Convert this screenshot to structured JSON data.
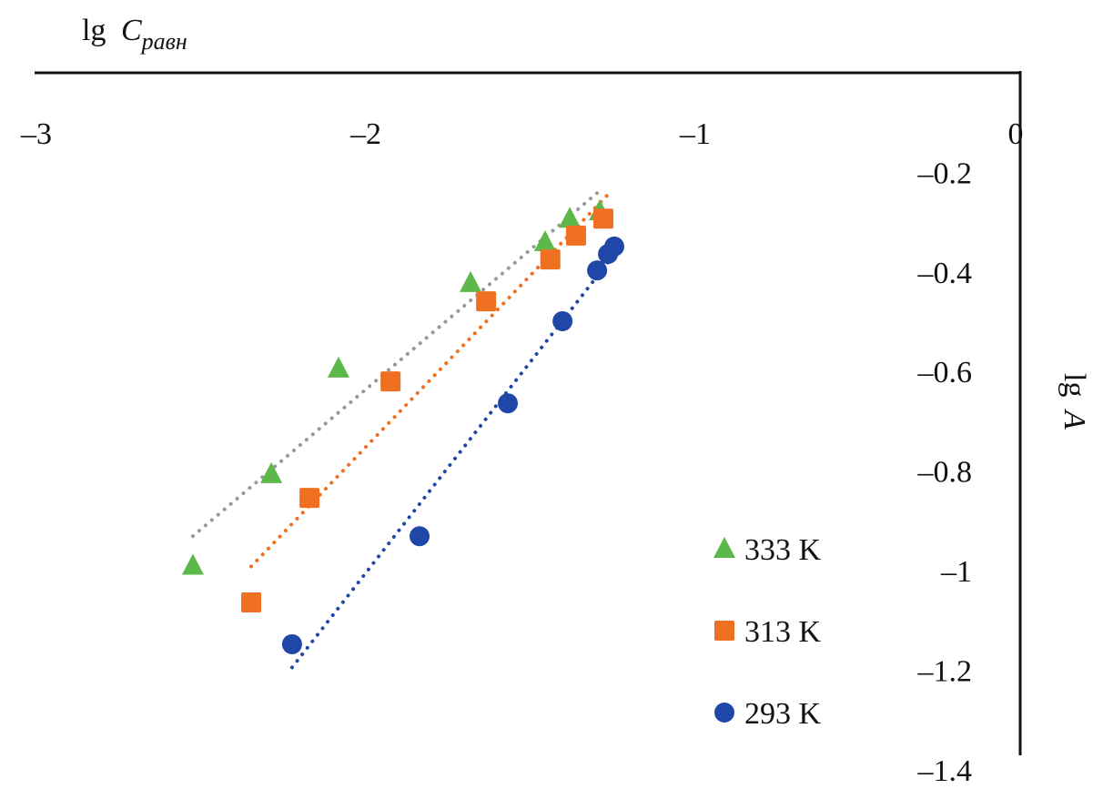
{
  "chart_data": {
    "type": "scatter",
    "title": "",
    "xlabel": {
      "main": "lg",
      "var": "C",
      "sub": "равн"
    },
    "ylabel": {
      "main": "lg",
      "var": "A"
    },
    "xlim": [
      -3,
      0
    ],
    "ylim": [
      -1.4,
      0
    ],
    "x_ticks": [
      -3,
      -2,
      -1,
      0
    ],
    "x_tick_labels": [
      "–3",
      "–2",
      "–1",
      "0"
    ],
    "y_ticks": [
      -0.2,
      -0.4,
      -0.6,
      -0.8,
      -1,
      -1.2,
      -1.4
    ],
    "y_tick_labels": [
      "–0.2",
      "–0.4",
      "–0.6",
      "–0.8",
      "–1",
      "–1.2",
      "–1.4"
    ],
    "x_axis_position": "top",
    "y_axis_position": "right",
    "grid": false,
    "legend_position": "bottom-right",
    "trendlines": "linear, dotted",
    "series": [
      {
        "name": "333 K",
        "marker": "triangle",
        "color": "#5cb84a",
        "trend_color": "#999999",
        "x": [
          -2.525,
          -2.287,
          -2.083,
          -1.682,
          -1.456,
          -1.381,
          -1.29
        ],
        "y": [
          -0.99,
          -0.806,
          -0.594,
          -0.422,
          -0.34,
          -0.293,
          -0.278
        ]
      },
      {
        "name": "313 K",
        "marker": "square",
        "color": "#f07021",
        "trend_color": "#f07021",
        "x": [
          -2.348,
          -2.171,
          -1.925,
          -1.635,
          -1.44,
          -1.362,
          -1.279
        ],
        "y": [
          -1.064,
          -0.854,
          -0.62,
          -0.459,
          -0.375,
          -0.327,
          -0.293
        ]
      },
      {
        "name": "293 K",
        "marker": "circle",
        "color": "#1f47a8",
        "trend_color": "#1f47a8",
        "x": [
          -2.224,
          -1.837,
          -1.569,
          -1.403,
          -1.298,
          -1.265,
          -1.246
        ],
        "y": [
          -1.148,
          -0.931,
          -0.664,
          -0.499,
          -0.397,
          -0.364,
          -0.349
        ]
      }
    ]
  }
}
